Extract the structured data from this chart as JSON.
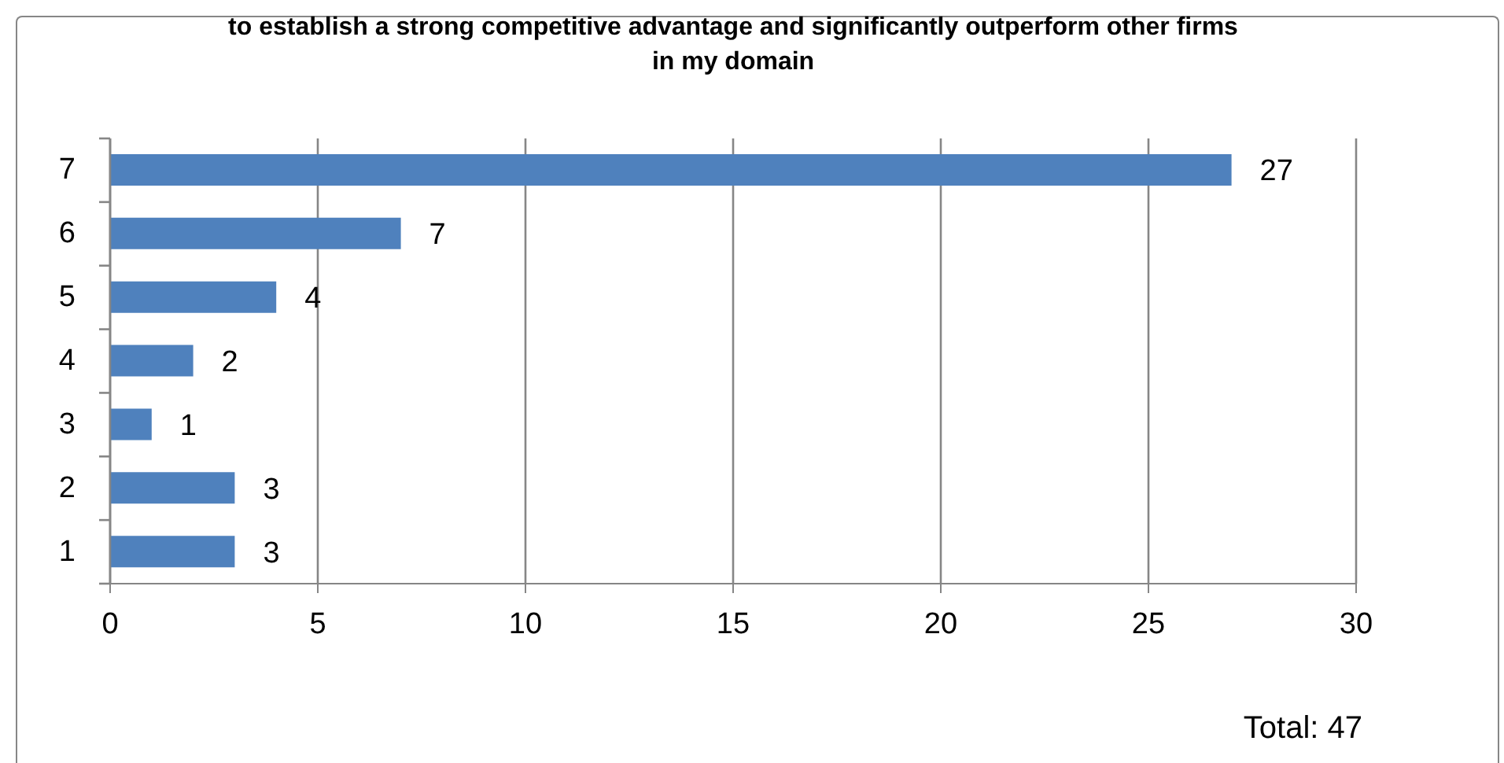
{
  "chart_data": {
    "type": "bar",
    "orientation": "horizontal",
    "title": "to establish a strong competitive advantage and significantly outperform other firms in my domain",
    "categories": [
      "7",
      "6",
      "5",
      "4",
      "3",
      "2",
      "1"
    ],
    "values": [
      27,
      7,
      4,
      2,
      1,
      3,
      3
    ],
    "color": "#4f81bd",
    "xlim": [
      0,
      30
    ],
    "xticks": [
      0,
      5,
      10,
      15,
      20,
      25,
      30
    ],
    "grid": "x",
    "data_labels": true,
    "annotations": [
      "Total: 47"
    ]
  }
}
